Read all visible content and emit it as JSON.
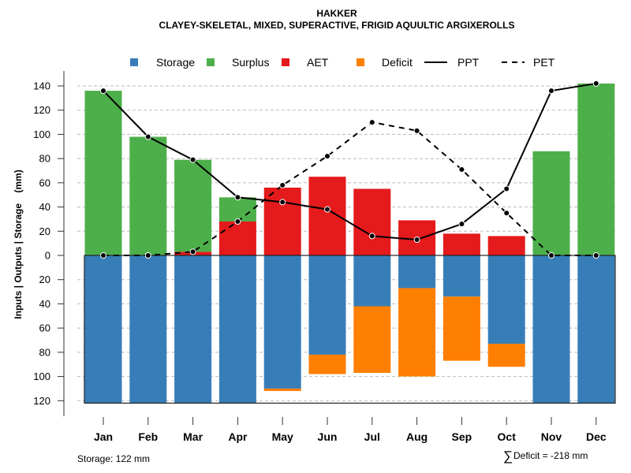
{
  "chart_data": {
    "type": "bar",
    "title": "HAKKER",
    "subtitle": "CLAYEY-SKELETAL, MIXED, SUPERACTIVE, FRIGID AQUULTIC ARGIXEROLLS",
    "ylabel": "Inputs | Outputs | Storage    (mm)",
    "xlabel": "",
    "ylim": [
      -122,
      142
    ],
    "yticks": [
      140,
      120,
      100,
      80,
      60,
      40,
      20,
      0,
      -20,
      -40,
      -60,
      -80,
      -100,
      -120
    ],
    "ytick_labels": [
      "140",
      "120",
      "100",
      "80",
      "60",
      "40",
      "20",
      "0",
      "20",
      "40",
      "60",
      "80",
      "100",
      "120"
    ],
    "grid": true,
    "legend_position": "top",
    "categories": [
      "Jan",
      "Feb",
      "Mar",
      "Apr",
      "May",
      "Jun",
      "Jul",
      "Aug",
      "Sep",
      "Oct",
      "Nov",
      "Dec"
    ],
    "series": [
      {
        "name": "Storage",
        "kind": "bar-below",
        "color": "#377EB8",
        "values": [
          122,
          122,
          122,
          122,
          110,
          82,
          42,
          27,
          34,
          73,
          122,
          122
        ]
      },
      {
        "name": "Surplus",
        "kind": "bar-above",
        "color": "#4DAF4A",
        "values": [
          136,
          98,
          76,
          20,
          0,
          0,
          0,
          0,
          0,
          0,
          86,
          142
        ]
      },
      {
        "name": "AET",
        "kind": "bar-above",
        "color": "#E41A1C",
        "values": [
          0,
          0,
          3,
          28,
          56,
          65,
          55,
          29,
          18,
          16,
          0,
          0
        ]
      },
      {
        "name": "Deficit",
        "kind": "bar-below",
        "color": "#FF7F00",
        "values": [
          0,
          0,
          0,
          0,
          2,
          16,
          55,
          73,
          53,
          19,
          0,
          0
        ]
      },
      {
        "name": "PPT",
        "kind": "line-solid",
        "color": "#000000",
        "values": [
          136,
          98,
          79,
          48,
          44,
          38,
          16,
          13,
          26,
          55,
          136,
          142
        ]
      },
      {
        "name": "PET",
        "kind": "line-dashed",
        "color": "#000000",
        "values": [
          0,
          0,
          3,
          28,
          58,
          82,
          110,
          103,
          71,
          35,
          0,
          0
        ]
      }
    ],
    "storage_note": "Storage: 122 mm",
    "deficit_note": "Deficit = -218 mm",
    "deficit_symbol": "∑"
  }
}
